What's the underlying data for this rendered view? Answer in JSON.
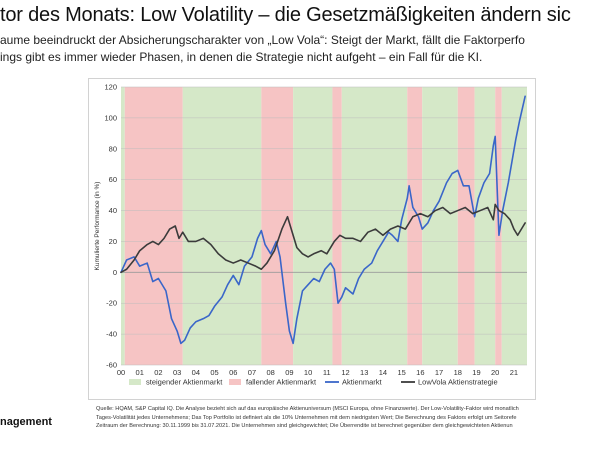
{
  "header": {
    "title": "tor des Monats: Low Volatility – die Gesetzmäßigkeiten ändern sic",
    "subtitle_lines": [
      "aume beeindruckt der Absicherungscharakter von „Low Vola“: Steigt der Markt, fällt die Faktorperfo",
      "ings gibt es immer wieder Phasen, in denen die Strategie nicht aufgeht – ein Fall für die KI."
    ]
  },
  "brand": {
    "text": "nagement"
  },
  "footnote": {
    "lines": [
      "Quelle: HQAM, S&P Capital IQ. Die Analyse bezieht sich auf das europäische Aktienuniversum (MSCI Europa, ohne Finanzwerte). Der Low-Volatility-Faktor wird monatlich",
      "Tages-Volatilität jedes Unternehmens; Das Top Portfolio ist definiert als die 10% Unternehmen mit dem niedrigsten Wert; Die Berechnung des Faktors erfolgt um Seitorefe",
      "Zeitraum der Berechnung: 30.11.1999 bis 31.07.2021. Die Unternehmen sind gleichgewichtet; Die Überrendite ist berechnet gegenüber dem gleichgewichteten Aktienun"
    ]
  },
  "chart_data": {
    "type": "line",
    "ylabel": "Kumulierte Performance (in %)",
    "xlabel": "",
    "ylim": [
      -60,
      120
    ],
    "yticks": [
      -60,
      -40,
      -20,
      0,
      20,
      40,
      60,
      80,
      100,
      120
    ],
    "xlim": [
      2000.0,
      2021.7
    ],
    "xticks": [
      "00",
      "01",
      "02",
      "03",
      "04",
      "05",
      "06",
      "07",
      "08",
      "09",
      "10",
      "11",
      "12",
      "13",
      "14",
      "15",
      "16",
      "17",
      "18",
      "19",
      "20",
      "21"
    ],
    "grid": "horizontal",
    "legend_position": "bottom",
    "regimes": [
      {
        "type": "rising",
        "start": 2000.0,
        "end": 2000.2
      },
      {
        "type": "falling",
        "start": 2000.2,
        "end": 2003.3
      },
      {
        "type": "rising",
        "start": 2003.3,
        "end": 2007.5
      },
      {
        "type": "falling",
        "start": 2007.5,
        "end": 2009.2
      },
      {
        "type": "rising",
        "start": 2009.2,
        "end": 2011.3
      },
      {
        "type": "falling",
        "start": 2011.3,
        "end": 2011.8
      },
      {
        "type": "rising",
        "start": 2011.8,
        "end": 2015.3
      },
      {
        "type": "falling",
        "start": 2015.3,
        "end": 2016.1
      },
      {
        "type": "rising",
        "start": 2016.1,
        "end": 2018.0
      },
      {
        "type": "falling",
        "start": 2018.0,
        "end": 2018.9
      },
      {
        "type": "rising",
        "start": 2018.9,
        "end": 2020.0
      },
      {
        "type": "falling",
        "start": 2020.0,
        "end": 2020.35
      },
      {
        "type": "rising",
        "start": 2020.35,
        "end": 2021.7
      }
    ],
    "legend": [
      {
        "key": "rising",
        "label": "steigender Aktienmarkt",
        "kind": "box",
        "color": "#d5e8c8"
      },
      {
        "key": "falling",
        "label": "fallender Aktienmarkt",
        "kind": "box",
        "color": "#f6c4c4"
      },
      {
        "key": "market",
        "label": "Aktienmarkt",
        "kind": "line",
        "color": "#3a66c9"
      },
      {
        "key": "lowvola",
        "label": "LowVola Aktienstrategie",
        "kind": "line",
        "color": "#3b3b3b"
      }
    ],
    "series": [
      {
        "key": "market",
        "name": "Aktienmarkt",
        "color": "#3a66c9",
        "points": [
          [
            2000.0,
            0
          ],
          [
            2000.3,
            8
          ],
          [
            2000.7,
            10
          ],
          [
            2001.0,
            4
          ],
          [
            2001.4,
            6
          ],
          [
            2001.7,
            -6
          ],
          [
            2002.0,
            -4
          ],
          [
            2002.4,
            -12
          ],
          [
            2002.7,
            -30
          ],
          [
            2003.0,
            -38
          ],
          [
            2003.2,
            -46
          ],
          [
            2003.4,
            -44
          ],
          [
            2003.7,
            -36
          ],
          [
            2004.0,
            -32
          ],
          [
            2004.4,
            -30
          ],
          [
            2004.7,
            -28
          ],
          [
            2005.0,
            -22
          ],
          [
            2005.4,
            -16
          ],
          [
            2005.7,
            -8
          ],
          [
            2006.0,
            -2
          ],
          [
            2006.3,
            -8
          ],
          [
            2006.6,
            4
          ],
          [
            2007.0,
            10
          ],
          [
            2007.3,
            22
          ],
          [
            2007.5,
            27
          ],
          [
            2007.7,
            18
          ],
          [
            2008.0,
            12
          ],
          [
            2008.3,
            20
          ],
          [
            2008.5,
            10
          ],
          [
            2008.8,
            -20
          ],
          [
            2009.0,
            -38
          ],
          [
            2009.2,
            -46
          ],
          [
            2009.4,
            -30
          ],
          [
            2009.7,
            -12
          ],
          [
            2010.0,
            -8
          ],
          [
            2010.3,
            -4
          ],
          [
            2010.6,
            -6
          ],
          [
            2010.9,
            2
          ],
          [
            2011.2,
            6
          ],
          [
            2011.4,
            2
          ],
          [
            2011.6,
            -20
          ],
          [
            2011.8,
            -16
          ],
          [
            2012.0,
            -10
          ],
          [
            2012.4,
            -14
          ],
          [
            2012.7,
            -4
          ],
          [
            2013.0,
            2
          ],
          [
            2013.4,
            6
          ],
          [
            2013.7,
            14
          ],
          [
            2014.0,
            20
          ],
          [
            2014.3,
            26
          ],
          [
            2014.5,
            24
          ],
          [
            2014.8,
            20
          ],
          [
            2015.0,
            34
          ],
          [
            2015.3,
            48
          ],
          [
            2015.4,
            56
          ],
          [
            2015.6,
            42
          ],
          [
            2015.9,
            36
          ],
          [
            2016.1,
            28
          ],
          [
            2016.4,
            32
          ],
          [
            2016.7,
            40
          ],
          [
            2017.0,
            46
          ],
          [
            2017.4,
            58
          ],
          [
            2017.7,
            64
          ],
          [
            2018.0,
            66
          ],
          [
            2018.3,
            56
          ],
          [
            2018.6,
            56
          ],
          [
            2018.9,
            36
          ],
          [
            2019.1,
            48
          ],
          [
            2019.4,
            58
          ],
          [
            2019.7,
            64
          ],
          [
            2019.9,
            82
          ],
          [
            2020.0,
            88
          ],
          [
            2020.1,
            56
          ],
          [
            2020.2,
            24
          ],
          [
            2020.4,
            40
          ],
          [
            2020.7,
            58
          ],
          [
            2020.9,
            72
          ],
          [
            2021.1,
            86
          ],
          [
            2021.3,
            98
          ],
          [
            2021.6,
            114
          ]
        ]
      },
      {
        "key": "lowvola",
        "name": "LowVola Aktienstrategie",
        "color": "#3b3b3b",
        "points": [
          [
            2000.0,
            0
          ],
          [
            2000.3,
            2
          ],
          [
            2000.7,
            8
          ],
          [
            2001.0,
            14
          ],
          [
            2001.4,
            18
          ],
          [
            2001.7,
            20
          ],
          [
            2002.0,
            18
          ],
          [
            2002.3,
            22
          ],
          [
            2002.6,
            28
          ],
          [
            2002.9,
            30
          ],
          [
            2003.1,
            22
          ],
          [
            2003.3,
            26
          ],
          [
            2003.6,
            20
          ],
          [
            2004.0,
            20
          ],
          [
            2004.4,
            22
          ],
          [
            2004.8,
            18
          ],
          [
            2005.2,
            12
          ],
          [
            2005.6,
            8
          ],
          [
            2006.0,
            6
          ],
          [
            2006.4,
            8
          ],
          [
            2006.8,
            6
          ],
          [
            2007.2,
            4
          ],
          [
            2007.5,
            2
          ],
          [
            2007.8,
            6
          ],
          [
            2008.2,
            14
          ],
          [
            2008.6,
            28
          ],
          [
            2008.9,
            36
          ],
          [
            2009.1,
            28
          ],
          [
            2009.4,
            16
          ],
          [
            2009.7,
            12
          ],
          [
            2010.0,
            10
          ],
          [
            2010.3,
            12
          ],
          [
            2010.7,
            14
          ],
          [
            2011.0,
            12
          ],
          [
            2011.4,
            20
          ],
          [
            2011.7,
            24
          ],
          [
            2012.0,
            22
          ],
          [
            2012.4,
            22
          ],
          [
            2012.8,
            20
          ],
          [
            2013.2,
            26
          ],
          [
            2013.6,
            28
          ],
          [
            2014.0,
            24
          ],
          [
            2014.4,
            28
          ],
          [
            2014.8,
            30
          ],
          [
            2015.2,
            28
          ],
          [
            2015.6,
            36
          ],
          [
            2016.0,
            38
          ],
          [
            2016.4,
            36
          ],
          [
            2016.8,
            40
          ],
          [
            2017.2,
            42
          ],
          [
            2017.6,
            38
          ],
          [
            2018.0,
            40
          ],
          [
            2018.4,
            42
          ],
          [
            2018.8,
            38
          ],
          [
            2019.2,
            40
          ],
          [
            2019.6,
            42
          ],
          [
            2019.9,
            34
          ],
          [
            2020.0,
            44
          ],
          [
            2020.2,
            40
          ],
          [
            2020.5,
            38
          ],
          [
            2020.8,
            34
          ],
          [
            2021.0,
            28
          ],
          [
            2021.2,
            24
          ],
          [
            2021.5,
            30
          ],
          [
            2021.6,
            32
          ]
        ]
      }
    ]
  }
}
